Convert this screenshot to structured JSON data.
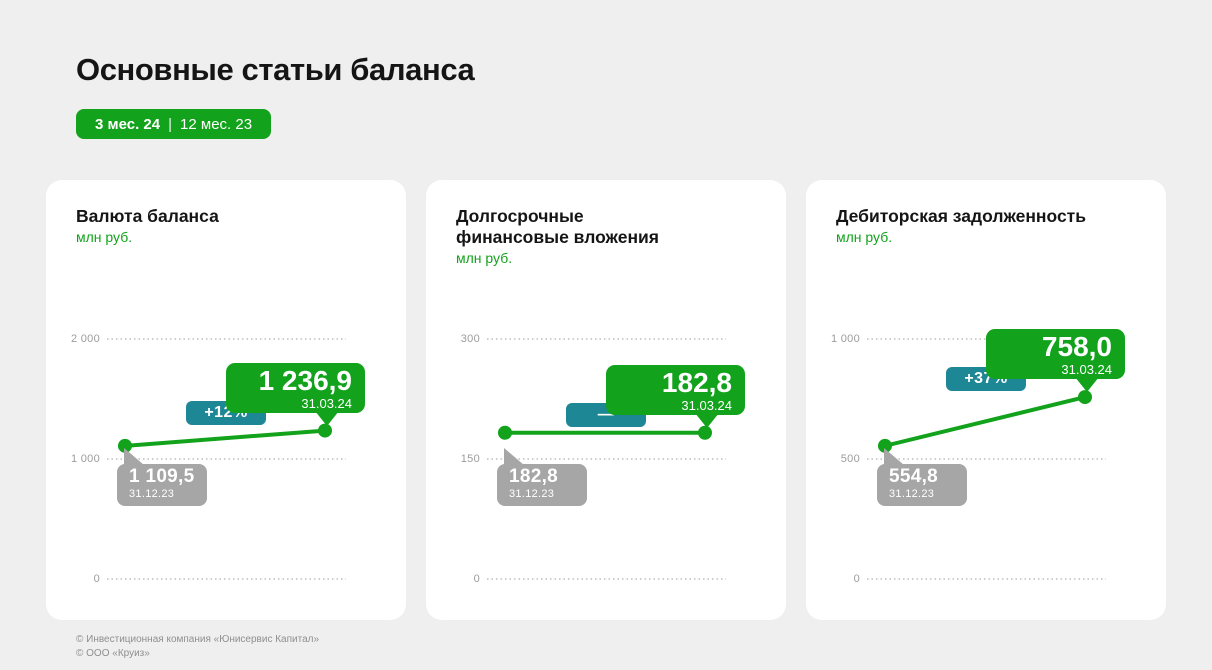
{
  "header": {
    "title": "Основные статьи баланса",
    "badge": {
      "current": "3 мес. 24",
      "separator": "|",
      "previous": "12 мес. 23"
    }
  },
  "footer": {
    "lines": [
      "© Инвестиционная компания «Юнисервис Капитал»",
      "© ООО «Круиз»"
    ]
  },
  "colors": {
    "green": "#12A21B",
    "teal": "#1E8796",
    "gray_bubble": "#A6A6A6",
    "axis_text": "#9C9C9C",
    "grid_dots": "#CFCFCF",
    "background": "#EFEFEF",
    "card_bg": "#FFFFFF",
    "footer_text": "#8F8F8F"
  },
  "chart_data": [
    {
      "type": "line",
      "title": "Валюта баланса",
      "title_lines": [
        "Валюта баланса"
      ],
      "unit": "млн руб.",
      "categories": [
        "31.12.23",
        "31.03.24"
      ],
      "values": [
        1109.5,
        1236.9
      ],
      "value_labels": [
        "1 109,5",
        "1 236,9"
      ],
      "change": "+12%",
      "ylim": [
        0,
        2000
      ],
      "yticks": [
        {
          "value": 2000,
          "label": "2 000"
        },
        {
          "value": 1000,
          "label": "1 000"
        },
        {
          "value": 0,
          "label": "0"
        }
      ],
      "grid": "dotted",
      "legend_position": "none"
    },
    {
      "type": "line",
      "title": "Долгосрочные финансовые вложения",
      "title_lines": [
        "Долгосрочные",
        "финансовые вложения"
      ],
      "unit": "млн руб.",
      "categories": [
        "31.12.23",
        "31.03.24"
      ],
      "values": [
        182.8,
        182.8
      ],
      "value_labels": [
        "182,8",
        "182,8"
      ],
      "change": "—",
      "ylim": [
        0,
        300
      ],
      "yticks": [
        {
          "value": 300,
          "label": "300"
        },
        {
          "value": 150,
          "label": "150"
        },
        {
          "value": 0,
          "label": "0"
        }
      ],
      "grid": "dotted",
      "legend_position": "none"
    },
    {
      "type": "line",
      "title": "Дебиторская задолженность",
      "title_lines": [
        "Дебиторская задолженность"
      ],
      "unit": "млн руб.",
      "categories": [
        "31.12.23",
        "31.03.24"
      ],
      "values": [
        554.8,
        758.0
      ],
      "value_labels": [
        "554,8",
        "758,0"
      ],
      "change": "+37%",
      "ylim": [
        0,
        1000
      ],
      "yticks": [
        {
          "value": 1000,
          "label": "1 000"
        },
        {
          "value": 500,
          "label": "500"
        },
        {
          "value": 0,
          "label": "0"
        }
      ],
      "grid": "dotted",
      "legend_position": "none"
    }
  ]
}
